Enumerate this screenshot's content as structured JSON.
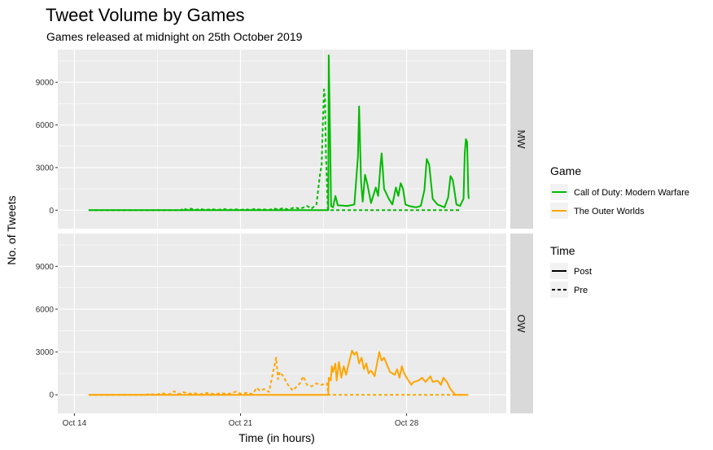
{
  "chart_data": {
    "type": "line",
    "title": "Tweet Volume by Games",
    "subtitle": "Games released at midnight on 25th October 2019",
    "xlabel": "Time (in hours)",
    "ylabel": "No. of Tweets",
    "x_axis": {
      "unit": "days since Oct 14 00:00",
      "range": [
        -0.7,
        18.2
      ],
      "ticks": [
        {
          "value": 0,
          "label": "Oct 14"
        },
        {
          "value": 7,
          "label": "Oct 21"
        },
        {
          "value": 14,
          "label": "Oct 28"
        }
      ]
    },
    "y_axis": {
      "range": [
        -1300,
        11300
      ],
      "ticks": [
        0,
        3000,
        6000,
        9000
      ]
    },
    "grid": true,
    "facets": [
      {
        "label": "MW",
        "game": "Call of Duty: Modern Warfare",
        "series": [
          {
            "time": "Pre",
            "points": [
              [
                0.6,
                0
              ],
              [
                4.5,
                0
              ],
              [
                4.6,
                150
              ],
              [
                4.7,
                40
              ],
              [
                4.9,
                110
              ],
              [
                5.1,
                30
              ],
              [
                5.3,
                90
              ],
              [
                5.5,
                20
              ],
              [
                5.8,
                70
              ],
              [
                6.0,
                20
              ],
              [
                6.3,
                80
              ],
              [
                6.5,
                30
              ],
              [
                6.8,
                60
              ],
              [
                7.0,
                20
              ],
              [
                7.2,
                70
              ],
              [
                7.4,
                20
              ],
              [
                7.6,
                80
              ],
              [
                7.9,
                30
              ],
              [
                8.0,
                50
              ],
              [
                8.2,
                20
              ],
              [
                8.4,
                120
              ],
              [
                8.6,
                40
              ],
              [
                8.8,
                150
              ],
              [
                9.0,
                50
              ],
              [
                9.3,
                200
              ],
              [
                9.5,
                80
              ],
              [
                9.8,
                300
              ],
              [
                10.0,
                120
              ],
              [
                10.2,
                400
              ],
              [
                10.35,
                2500
              ],
              [
                10.42,
                3200
              ],
              [
                10.48,
                6500
              ],
              [
                10.52,
                8500
              ],
              [
                10.56,
                7800
              ],
              [
                10.6,
                4000
              ],
              [
                10.65,
                1500
              ],
              [
                10.68,
                50
              ],
              [
                10.7,
                0
              ],
              [
                16.3,
                0
              ]
            ]
          },
          {
            "time": "Post",
            "points": [
              [
                0.6,
                0
              ],
              [
                10.7,
                0
              ],
              [
                10.72,
                10900
              ],
              [
                10.78,
                4500
              ],
              [
                10.82,
                300
              ],
              [
                10.9,
                200
              ],
              [
                11.0,
                1000
              ],
              [
                11.1,
                350
              ],
              [
                11.5,
                300
              ],
              [
                11.8,
                400
              ],
              [
                11.95,
                3800
              ],
              [
                12.0,
                7300
              ],
              [
                12.08,
                2000
              ],
              [
                12.15,
                600
              ],
              [
                12.25,
                2500
              ],
              [
                12.35,
                1800
              ],
              [
                12.5,
                500
              ],
              [
                12.7,
                1600
              ],
              [
                12.8,
                1000
              ],
              [
                12.9,
                3200
              ],
              [
                12.95,
                4000
              ],
              [
                13.05,
                1500
              ],
              [
                13.25,
                800
              ],
              [
                13.4,
                400
              ],
              [
                13.55,
                1600
              ],
              [
                13.65,
                1000
              ],
              [
                13.75,
                1900
              ],
              [
                13.85,
                1500
              ],
              [
                13.95,
                400
              ],
              [
                14.1,
                300
              ],
              [
                14.4,
                200
              ],
              [
                14.6,
                300
              ],
              [
                14.75,
                1400
              ],
              [
                14.85,
                3600
              ],
              [
                14.95,
                3200
              ],
              [
                15.1,
                800
              ],
              [
                15.3,
                400
              ],
              [
                15.6,
                200
              ],
              [
                15.75,
                900
              ],
              [
                15.85,
                2400
              ],
              [
                15.95,
                2100
              ],
              [
                16.1,
                400
              ],
              [
                16.25,
                300
              ],
              [
                16.4,
                800
              ],
              [
                16.45,
                4000
              ],
              [
                16.5,
                5000
              ],
              [
                16.55,
                4800
              ],
              [
                16.6,
                1200
              ],
              [
                16.62,
                800
              ]
            ]
          }
        ]
      },
      {
        "label": "OW",
        "game": "The Outer Worlds",
        "series": [
          {
            "time": "Pre",
            "points": [
              [
                0.6,
                0
              ],
              [
                3.0,
                0
              ],
              [
                3.2,
                70
              ],
              [
                3.4,
                0
              ],
              [
                3.7,
                100
              ],
              [
                4.0,
                30
              ],
              [
                4.2,
                250
              ],
              [
                4.4,
                50
              ],
              [
                4.6,
                180
              ],
              [
                4.8,
                60
              ],
              [
                5.0,
                120
              ],
              [
                5.3,
                40
              ],
              [
                5.6,
                130
              ],
              [
                5.9,
                50
              ],
              [
                6.2,
                110
              ],
              [
                6.5,
                60
              ],
              [
                6.8,
                220
              ],
              [
                7.0,
                80
              ],
              [
                7.3,
                150
              ],
              [
                7.5,
                50
              ],
              [
                7.7,
                500
              ],
              [
                7.8,
                300
              ],
              [
                8.0,
                400
              ],
              [
                8.2,
                200
              ],
              [
                8.5,
                2600
              ],
              [
                8.58,
                1100
              ],
              [
                8.65,
                1600
              ],
              [
                8.8,
                1300
              ],
              [
                9.0,
                700
              ],
              [
                9.2,
                300
              ],
              [
                9.5,
                800
              ],
              [
                9.65,
                1300
              ],
              [
                9.8,
                700
              ],
              [
                10.0,
                600
              ],
              [
                10.2,
                800
              ],
              [
                10.4,
                700
              ],
              [
                10.65,
                800
              ],
              [
                10.7,
                0
              ],
              [
                16.3,
                0
              ]
            ]
          },
          {
            "time": "Post",
            "points": [
              [
                0.6,
                0
              ],
              [
                10.7,
                0
              ],
              [
                10.72,
                1200
              ],
              [
                10.8,
                1000
              ],
              [
                10.85,
                2000
              ],
              [
                10.9,
                1600
              ],
              [
                11.0,
                2200
              ],
              [
                11.05,
                1000
              ],
              [
                11.15,
                2300
              ],
              [
                11.25,
                1200
              ],
              [
                11.35,
                2000
              ],
              [
                11.45,
                1400
              ],
              [
                11.55,
                2100
              ],
              [
                11.7,
                3100
              ],
              [
                11.8,
                2800
              ],
              [
                11.9,
                3000
              ],
              [
                12.0,
                2200
              ],
              [
                12.1,
                2600
              ],
              [
                12.2,
                1800
              ],
              [
                12.3,
                2200
              ],
              [
                12.4,
                1500
              ],
              [
                12.5,
                1700
              ],
              [
                12.65,
                1300
              ],
              [
                12.85,
                3000
              ],
              [
                12.95,
                2400
              ],
              [
                13.05,
                2600
              ],
              [
                13.2,
                2000
              ],
              [
                13.3,
                1600
              ],
              [
                13.5,
                1400
              ],
              [
                13.6,
                1800
              ],
              [
                13.7,
                1200
              ],
              [
                13.8,
                2000
              ],
              [
                13.9,
                1500
              ],
              [
                14.0,
                1200
              ],
              [
                14.2,
                700
              ],
              [
                14.3,
                900
              ],
              [
                14.5,
                1000
              ],
              [
                14.65,
                1200
              ],
              [
                14.8,
                900
              ],
              [
                15.0,
                1300
              ],
              [
                15.1,
                900
              ],
              [
                15.3,
                1000
              ],
              [
                15.45,
                700
              ],
              [
                15.55,
                1200
              ],
              [
                15.7,
                900
              ],
              [
                15.85,
                400
              ],
              [
                16.05,
                0
              ],
              [
                16.6,
                0
              ]
            ]
          }
        ]
      }
    ],
    "legend": {
      "placement": "right",
      "game_title": "Game",
      "game_items": [
        {
          "label": "Call of Duty: Modern Warfare",
          "color": "#00BA00"
        },
        {
          "label": "The Outer Worlds",
          "color": "#FFA500"
        }
      ],
      "time_title": "Time",
      "time_items": [
        {
          "label": "Post",
          "linetype": "solid"
        },
        {
          "label": "Pre",
          "linetype": "dashed"
        }
      ]
    },
    "colors": {
      "MW": "#00BA00",
      "OW": "#FFA500",
      "panel_bg": "#EBEBEB",
      "grid": "#FFFFFF",
      "strip_bg": "#D9D9D9"
    }
  }
}
